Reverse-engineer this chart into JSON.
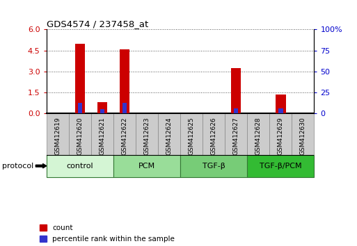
{
  "title": "GDS4574 / 237458_at",
  "samples": [
    "GSM412619",
    "GSM412620",
    "GSM412621",
    "GSM412622",
    "GSM412623",
    "GSM412624",
    "GSM412625",
    "GSM412626",
    "GSM412627",
    "GSM412628",
    "GSM412629",
    "GSM412630"
  ],
  "count_values": [
    0,
    5.0,
    0.8,
    4.6,
    0,
    0,
    0,
    0,
    3.25,
    0,
    1.35,
    0
  ],
  "percentile_values": [
    0,
    12.5,
    5.0,
    12.5,
    0,
    0,
    0,
    0,
    6.0,
    0,
    6.0,
    0
  ],
  "ylim_left": [
    0,
    6
  ],
  "ylim_right": [
    0,
    100
  ],
  "yticks_left": [
    0,
    1.5,
    3.0,
    4.5,
    6
  ],
  "yticks_right": [
    0,
    25,
    50,
    75,
    100
  ],
  "bar_color_count": "#cc0000",
  "bar_color_pct": "#3333cc",
  "protocol_groups": [
    {
      "label": "control",
      "start": 0,
      "end": 2,
      "color": "#d4f5d4"
    },
    {
      "label": "PCM",
      "start": 3,
      "end": 5,
      "color": "#99dd99"
    },
    {
      "label": "TGF-β",
      "start": 6,
      "end": 8,
      "color": "#77cc77"
    },
    {
      "label": "TGF-β/PCM",
      "start": 9,
      "end": 11,
      "color": "#33bb33"
    }
  ],
  "legend_count_label": "count",
  "legend_pct_label": "percentile rank within the sample",
  "protocol_label": "protocol",
  "tick_color_left": "#cc0000",
  "tick_color_right": "#0000cc",
  "grid_color": "#555555",
  "xlabel_bg": "#cccccc",
  "xlabel_edge": "#888888"
}
